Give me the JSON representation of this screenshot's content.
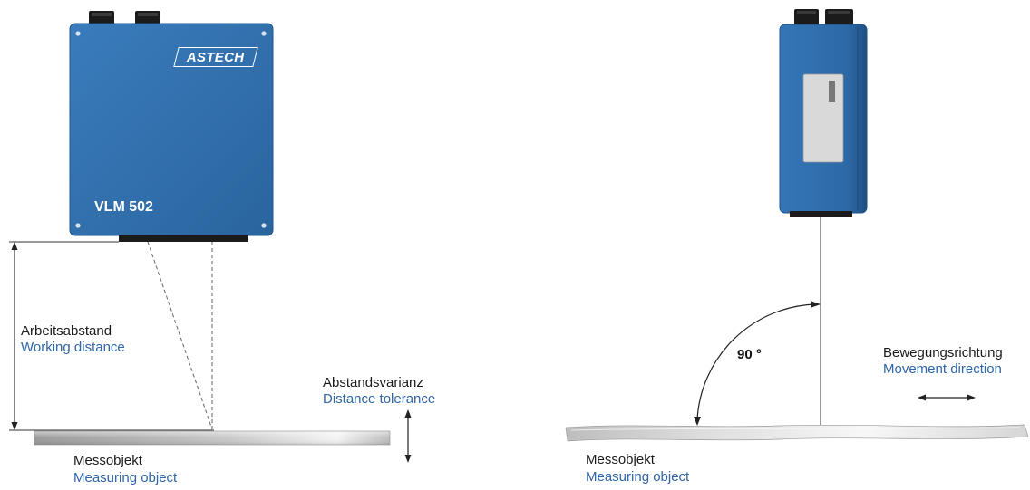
{
  "left_sensor": {
    "brand": "ASTECH",
    "model": "VLM 502",
    "body_color": "#2f6ea8"
  },
  "labels": {
    "working_distance_de": "Arbeitsabstand",
    "working_distance_en": "Working distance",
    "distance_tolerance_de": "Abstandsvarianz",
    "distance_tolerance_en": "Distance tolerance",
    "measuring_object_left_de": "Messobjekt",
    "measuring_object_left_en": "Measuring object",
    "angle": "90 °",
    "movement_direction_de": "Bewegungsrichtung",
    "movement_direction_en": "Movement direction",
    "measuring_object_right_de": "Messobjekt",
    "measuring_object_right_en": "Measuring object"
  },
  "colors": {
    "english_text": "#2e66a8",
    "german_text": "#1a1a1a",
    "sensor_blue": "#2f6ea8",
    "connector": "#1a1a1a"
  }
}
